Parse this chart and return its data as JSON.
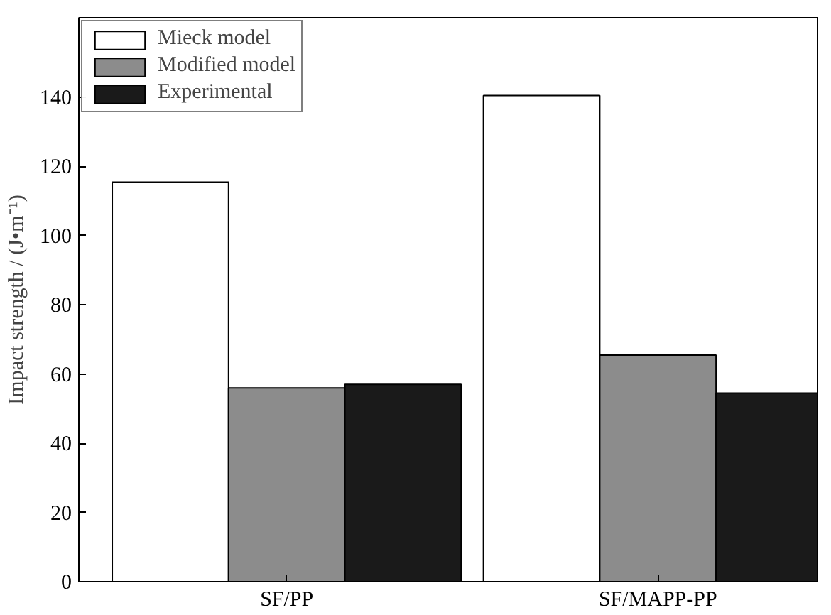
{
  "chart_data": {
    "type": "bar",
    "ylabel": "Impact strength / (J•m⁻¹)",
    "categories": [
      "SF/PP",
      "SF/MAPP-PP"
    ],
    "series": [
      {
        "name": "Mieck model",
        "color": "#ffffff",
        "values": [
          115.5,
          140.5
        ]
      },
      {
        "name": "Modified model",
        "color": "#8c8c8c",
        "values": [
          56,
          65.5
        ]
      },
      {
        "name": "Experimental",
        "color": "#1a1a1a",
        "values": [
          57,
          54.5
        ]
      }
    ],
    "ylim": [
      0,
      163
    ],
    "yticks": [
      0,
      20,
      40,
      60,
      80,
      100,
      120,
      140
    ],
    "grid": false,
    "legend": "top left"
  }
}
